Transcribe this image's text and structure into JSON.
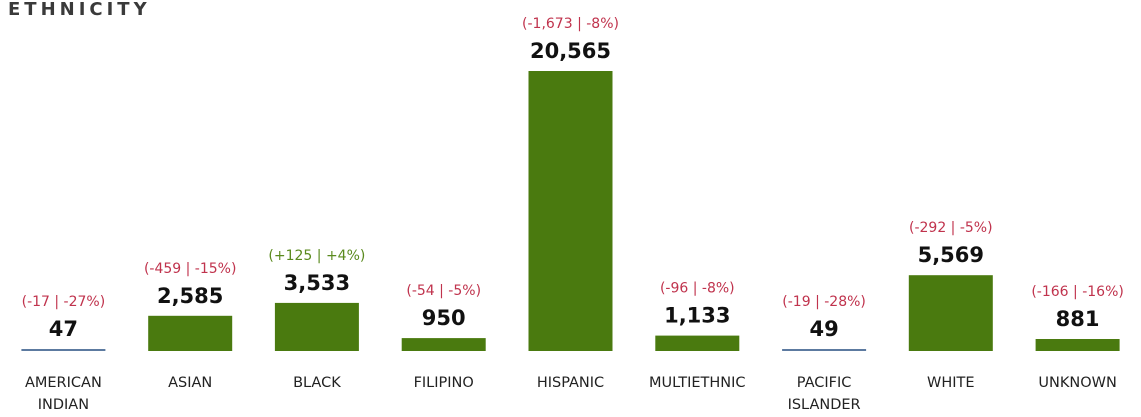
{
  "chart_data": {
    "type": "bar",
    "title": "ETHNICITY",
    "categories": [
      [
        "AMERICAN",
        "INDIAN"
      ],
      [
        "ASIAN"
      ],
      [
        "BLACK"
      ],
      [
        "FILIPINO"
      ],
      [
        "HISPANIC"
      ],
      [
        "MULTIETHNIC"
      ],
      [
        "PACIFIC",
        "ISLANDER"
      ],
      [
        "WHITE"
      ],
      [
        "UNKNOWN"
      ]
    ],
    "values": [
      47,
      2585,
      3533,
      950,
      20565,
      1133,
      49,
      5569,
      881
    ],
    "value_labels": [
      "47",
      "2,585",
      "3,533",
      "950",
      "20,565",
      "1,133",
      "49",
      "5,569",
      "881"
    ],
    "change_labels": [
      "(-17 | -27%)",
      "(-459 | -15%)",
      "(+125 | +4%)",
      "(-54 | -5%)",
      "(-1,673 | -8%)",
      "(-96 | -8%)",
      "(-19 | -28%)",
      "(-292 | -5%)",
      "(-166 | -16%)"
    ],
    "change_direction": [
      "down",
      "down",
      "up",
      "down",
      "down",
      "down",
      "down",
      "down",
      "down"
    ],
    "ylim": [
      0,
      20565
    ],
    "grid": false,
    "legend": "none",
    "colors": {
      "bar": "#4a7a0f",
      "tiny_bar": "#5c7aa0",
      "negative": "#c0334d",
      "positive": "#5a8a1e"
    }
  }
}
